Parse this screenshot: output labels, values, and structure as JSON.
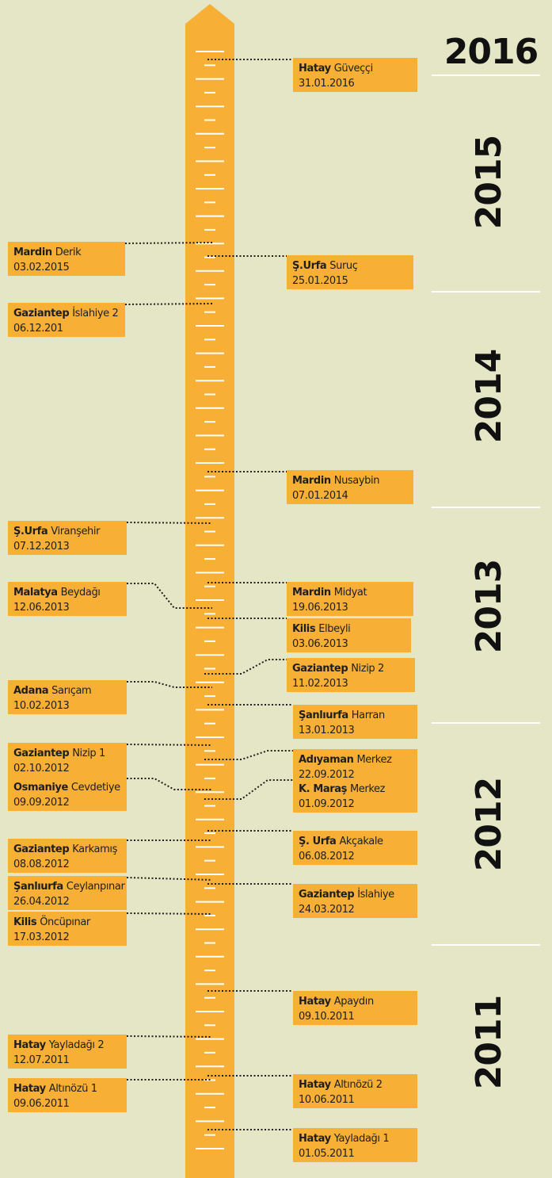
{
  "years": [
    "2016",
    "2015",
    "2014",
    "2013",
    "2012",
    "2011"
  ],
  "events": [
    {
      "city": "Hatay",
      "place": "Güveççi",
      "date": "31.01.2016"
    },
    {
      "city": "Ş.Urfa",
      "place": "Suruç",
      "date": "25.01.2015"
    },
    {
      "city": "Mardin",
      "place": "Nusaybin",
      "date": "07.01.2014"
    },
    {
      "city": "Mardin",
      "place": "Midyat",
      "date": "19.06.2013"
    },
    {
      "city": "Kilis",
      "place": "Elbeyli",
      "date": "03.06.2013"
    },
    {
      "city": "Gaziantep",
      "place": "Nizip 2",
      "date": "11.02.2013"
    },
    {
      "city": "Şanlıurfa",
      "place": "Harran",
      "date": "13.01.2013"
    },
    {
      "city": "Adıyaman",
      "place": "Merkez",
      "date": "22.09.2012"
    },
    {
      "city": "K. Maraş",
      "place": "Merkez",
      "date": "01.09.2012"
    },
    {
      "city": "Ş. Urfa",
      "place": "Akçakale",
      "date": "06.08.2012"
    },
    {
      "city": "Gaziantep",
      "place": "İslahiye",
      "date": "24.03.2012"
    },
    {
      "city": "Hatay",
      "place": "Apaydın",
      "date": "09.10.2011"
    },
    {
      "city": "Hatay",
      "place": "Altınözü 2",
      "date": "10.06.2011"
    },
    {
      "city": "Hatay",
      "place": "Yayladağı 1",
      "date": "01.05.2011"
    },
    {
      "city": "Mardin",
      "place": "Derik",
      "date": "03.02.2015"
    },
    {
      "city": "Gaziantep",
      "place": "İslahiye 2",
      "date": "06.12.201"
    },
    {
      "city": "Ş.Urfa",
      "place": "Viranşehir",
      "date": "07.12.2013"
    },
    {
      "city": "Malatya",
      "place": "Beydağı",
      "date": "12.06.2013"
    },
    {
      "city": "Adana",
      "place": "Sarıçam",
      "date": "10.02.2013"
    },
    {
      "city": "Gaziantep",
      "place": "Nizip 1",
      "date": "02.10.2012"
    },
    {
      "city": "Osmaniye",
      "place": "Cevdetiye",
      "date": "09.09.2012"
    },
    {
      "city": "Gaziantep",
      "place": "Karkamış",
      "date": "08.08.2012"
    },
    {
      "city": "Şanlıurfa",
      "place": "Ceylanpınar",
      "date": "26.04.2012"
    },
    {
      "city": "Kilis",
      "place": "Öncüpınar",
      "date": "17.03.2012"
    },
    {
      "city": "Hatay",
      "place": "Yayladağı 2",
      "date": "12.07.2011"
    },
    {
      "city": "Hatay",
      "place": "Altınözü 1",
      "date": "09.06.2011"
    }
  ]
}
